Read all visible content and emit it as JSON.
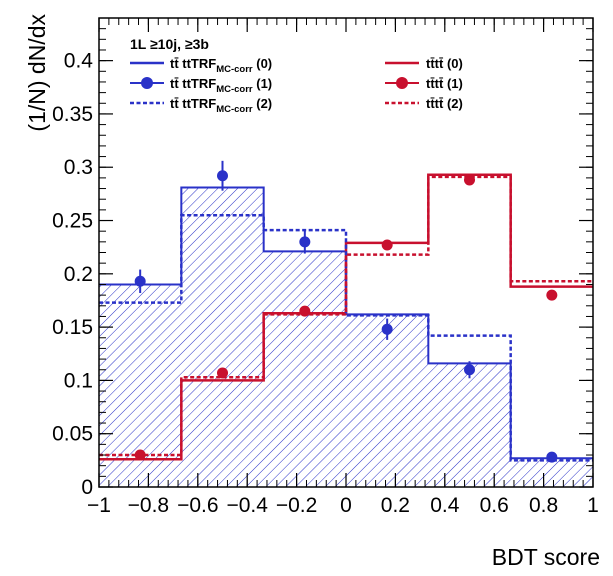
{
  "chart_data": {
    "type": "line",
    "xlabel": "BDT score",
    "ylabel": "(1/N) dN/dx",
    "xlim": [
      -1,
      1
    ],
    "ylim": [
      0,
      0.44
    ],
    "grid": false,
    "legend_placement": "top",
    "x_ticks": [
      {
        "value": -1,
        "label": "−1"
      },
      {
        "value": -0.8,
        "label": "−0.8"
      },
      {
        "value": -0.6,
        "label": "−0.6"
      },
      {
        "value": -0.4,
        "label": "−0.4"
      },
      {
        "value": -0.2,
        "label": "−0.2"
      },
      {
        "value": 0,
        "label": "0"
      },
      {
        "value": 0.2,
        "label": "0.2"
      },
      {
        "value": 0.4,
        "label": "0.4"
      },
      {
        "value": 0.6,
        "label": "0.6"
      },
      {
        "value": 0.8,
        "label": "0.8"
      },
      {
        "value": 1,
        "label": "1"
      }
    ],
    "y_ticks": [
      {
        "value": 0,
        "label": "0"
      },
      {
        "value": 0.05,
        "label": "0.05"
      },
      {
        "value": 0.1,
        "label": "0.1"
      },
      {
        "value": 0.15,
        "label": "0.15"
      },
      {
        "value": 0.2,
        "label": "0.2"
      },
      {
        "value": 0.25,
        "label": "0.25"
      },
      {
        "value": 0.3,
        "label": "0.3"
      },
      {
        "value": 0.35,
        "label": "0.35"
      },
      {
        "value": 0.4,
        "label": "0.4"
      }
    ],
    "bin_edges": [
      -1,
      -0.6667,
      -0.3333,
      0,
      0.3333,
      0.6667,
      1
    ],
    "bin_centers": [
      -0.8333,
      -0.5,
      -0.1667,
      0.1667,
      0.5,
      0.8333
    ],
    "legend_header": "1L ≥10j, ≥3b",
    "series": [
      {
        "name": "tt̄ ttTRF_MC-corr (0)",
        "name_main": "tt̄ ttTRF",
        "name_sub": "MC-corr",
        "name_tail": " (0)",
        "style": "hatched-histogram",
        "color": "#2a32c8",
        "values": [
          0.19,
          0.281,
          0.221,
          0.162,
          0.116,
          0.027
        ]
      },
      {
        "name": "tt̄ ttTRF_MC-corr (1)",
        "name_main": "tt̄ ttTRF",
        "name_sub": "MC-corr",
        "name_tail": " (1)",
        "style": "markers-with-errors",
        "color": "#2a32c8",
        "values": [
          0.193,
          0.292,
          0.23,
          0.148,
          0.11,
          0.028
        ],
        "errors": [
          0.011,
          0.014,
          0.011,
          0.01,
          0.008,
          0.004
        ]
      },
      {
        "name": "tt̄ ttTRF_MC-corr (2)",
        "name_main": "tt̄ ttTRF",
        "name_sub": "MC-corr",
        "name_tail": " (2)",
        "style": "dashed-histogram",
        "color": "#2a32c8",
        "values": [
          0.173,
          0.255,
          0.241,
          0.161,
          0.142,
          0.025
        ]
      },
      {
        "name": "tt̄tt̄ (0)",
        "name_main": "tt̄tt̄",
        "name_sub": "",
        "name_tail": " (0)",
        "style": "histogram",
        "color": "#c8102e",
        "values": [
          0.026,
          0.1,
          0.163,
          0.229,
          0.293,
          0.188
        ]
      },
      {
        "name": "tt̄tt̄ (1)",
        "name_main": "tt̄tt̄",
        "name_sub": "",
        "name_tail": " (1)",
        "style": "markers-with-errors",
        "color": "#c8102e",
        "values": [
          0.03,
          0.107,
          0.165,
          0.227,
          0.288,
          0.18
        ],
        "errors": [
          0.002,
          0.003,
          0.003,
          0.003,
          0.003,
          0.003
        ]
      },
      {
        "name": "tt̄tt̄ (2)",
        "name_main": "tt̄tt̄",
        "name_sub": "",
        "name_tail": " (2)",
        "style": "dashed-histogram",
        "color": "#c8102e",
        "values": [
          0.03,
          0.103,
          0.162,
          0.218,
          0.291,
          0.193
        ]
      }
    ]
  }
}
